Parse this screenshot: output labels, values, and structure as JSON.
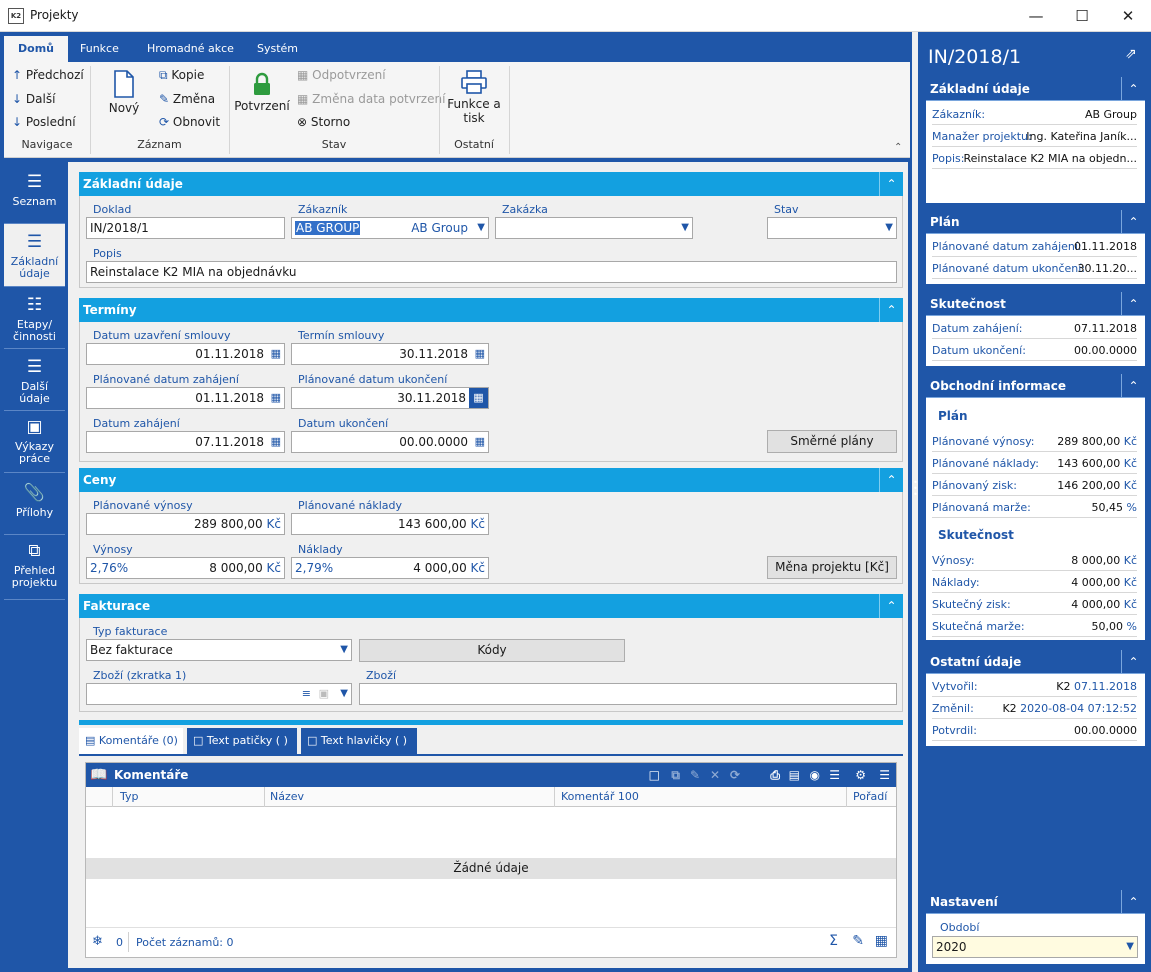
{
  "window": {
    "title": "Projekty",
    "logo": "K2",
    "controls": [
      "minimize-icon",
      "maximize-icon",
      "close-icon"
    ]
  },
  "ribbon": {
    "tabs": [
      "Domů",
      "Funkce",
      "Hromadné akce",
      "Systém"
    ],
    "active_tab": "Domů",
    "groups": {
      "navigace": {
        "label": "Navigace",
        "items": [
          "Předchozí",
          "Další",
          "Poslední"
        ]
      },
      "zaznam": {
        "label": "Záznam",
        "new": "Nový",
        "items": [
          "Kopie",
          "Změna",
          "Obnovit"
        ]
      },
      "stav": {
        "label": "Stav",
        "confirm": "Potvrzení",
        "items": [
          "Odpotvrzení",
          "Změna data potvrzení",
          "Storno"
        ]
      },
      "ostatni": {
        "label": "Ostatní",
        "print_l1": "Funkce a",
        "print_l2": "tisk"
      }
    }
  },
  "nav": {
    "items": [
      {
        "label1": "Seznam",
        "label2": "",
        "icon": "list-icon"
      },
      {
        "label1": "Základní",
        "label2": "údaje",
        "icon": "list-detail-icon"
      },
      {
        "label1": "Etapy/",
        "label2": "činnosti",
        "icon": "hierarchy-icon"
      },
      {
        "label1": "Další",
        "label2": "údaje",
        "icon": "list-detail-icon"
      },
      {
        "label1": "Výkazy",
        "label2": "práce",
        "icon": "archive-icon"
      },
      {
        "label1": "Přílohy",
        "label2": "",
        "icon": "paperclip-icon"
      },
      {
        "label1": "Přehled",
        "label2": "projektu",
        "icon": "overview-icon"
      }
    ],
    "active": "Základní"
  },
  "basic": {
    "title": "Základní údaje",
    "doklad_label": "Doklad",
    "doklad": "IN/2018/1",
    "zakaznik_label": "Zákazník",
    "zakaznik_code": "AB GROUP",
    "zakaznik_name": "AB Group",
    "zakazka_label": "Zakázka",
    "zakazka": "",
    "stav_label": "Stav",
    "stav": "",
    "popis_label": "Popis",
    "popis": "Reinstalace K2 MIA na objednávku"
  },
  "terms": {
    "title": "Termíny",
    "f1_label": "Datum uzavření smlouvy",
    "f1": "01.11.2018",
    "f2_label": "Termín smlouvy",
    "f2": "30.11.2018",
    "f3_label": "Plánované datum zahájení",
    "f3": "01.11.2018",
    "f4_label": "Plánované datum ukončení",
    "f4": "30.11.2018",
    "f5_label": "Datum zahájení",
    "f5": "07.11.2018",
    "f6_label": "Datum ukončení",
    "f6": "00.00.0000",
    "button": "Směrné plány"
  },
  "prices": {
    "title": "Ceny",
    "pv_label": "Plánované výnosy",
    "pv": "289 800,00",
    "pn_label": "Plánované náklady",
    "pn": "143 600,00",
    "v_label": "Výnosy",
    "v_pct": "2,76%",
    "v": "8 000,00",
    "n_label": "Náklady",
    "n_pct": "2,79%",
    "n": "4 000,00",
    "currency": "Kč",
    "button": "Měna projektu [Kč]"
  },
  "billing": {
    "title": "Fakturace",
    "typ_label": "Typ fakturace",
    "typ": "Bez fakturace",
    "kody": "Kódy",
    "zbozi1_label": "Zboží (zkratka 1)",
    "zbozi1": "",
    "zbozi_label": "Zboží",
    "zbozi": ""
  },
  "bottom_tabs": [
    "Komentáře (0)",
    "Text patičky ( )",
    "Text hlavičky ( )"
  ],
  "grid": {
    "title": "Komentáře",
    "columns": [
      "Typ",
      "Název",
      "Komentář 100",
      "Pořadí"
    ],
    "empty": "Žádné údaje",
    "count_icon_value": "0",
    "count_label": "Počet záznamů: 0"
  },
  "right": {
    "title": "IN/2018/1",
    "basic": {
      "title": "Základní údaje",
      "rows": [
        [
          "Zákazník:",
          "AB Group"
        ],
        [
          "Manažer projektu:",
          "Ing. Kateřina Janík..."
        ],
        [
          "Popis:",
          "Reinstalace K2 MIA na objedn..."
        ]
      ]
    },
    "plan": {
      "title": "Plán",
      "rows": [
        [
          "Plánované datum zahájení:",
          "01.11.2018"
        ],
        [
          "Plánované datum ukončení:",
          "30.11.20..."
        ]
      ]
    },
    "actual": {
      "title": "Skutečnost",
      "rows": [
        [
          "Datum zahájení:",
          "07.11.2018"
        ],
        [
          "Datum ukončení:",
          "00.00.0000"
        ]
      ]
    },
    "business": {
      "title": "Obchodní informace",
      "plan_sub": "Plán",
      "plan_rows": [
        [
          "Plánované výnosy:",
          "289 800,00",
          "Kč"
        ],
        [
          "Plánované náklady:",
          "143 600,00",
          "Kč"
        ],
        [
          "Plánovaný zisk:",
          "146 200,00",
          "Kč"
        ],
        [
          "Plánovaná marže:",
          "50,45",
          "%"
        ]
      ],
      "act_sub": "Skutečnost",
      "act_rows": [
        [
          "Výnosy:",
          "8 000,00",
          "Kč"
        ],
        [
          "Náklady:",
          "4 000,00",
          "Kč"
        ],
        [
          "Skutečný zisk:",
          "4 000,00",
          "Kč"
        ],
        [
          "Skutečná marže:",
          "50,00",
          "%"
        ]
      ]
    },
    "other": {
      "title": "Ostatní údaje",
      "created_label": "Vytvořil:",
      "created_by": "K2",
      "created_at": "07.11.2018",
      "changed_label": "Změnil:",
      "changed_by": "K2",
      "changed_at": "2020-08-04 07:12:52",
      "confirmed_label": "Potvrdil:",
      "confirmed_at": "00.00.0000"
    },
    "settings": {
      "title": "Nastavení",
      "period_label": "Období",
      "period": "2020"
    }
  }
}
